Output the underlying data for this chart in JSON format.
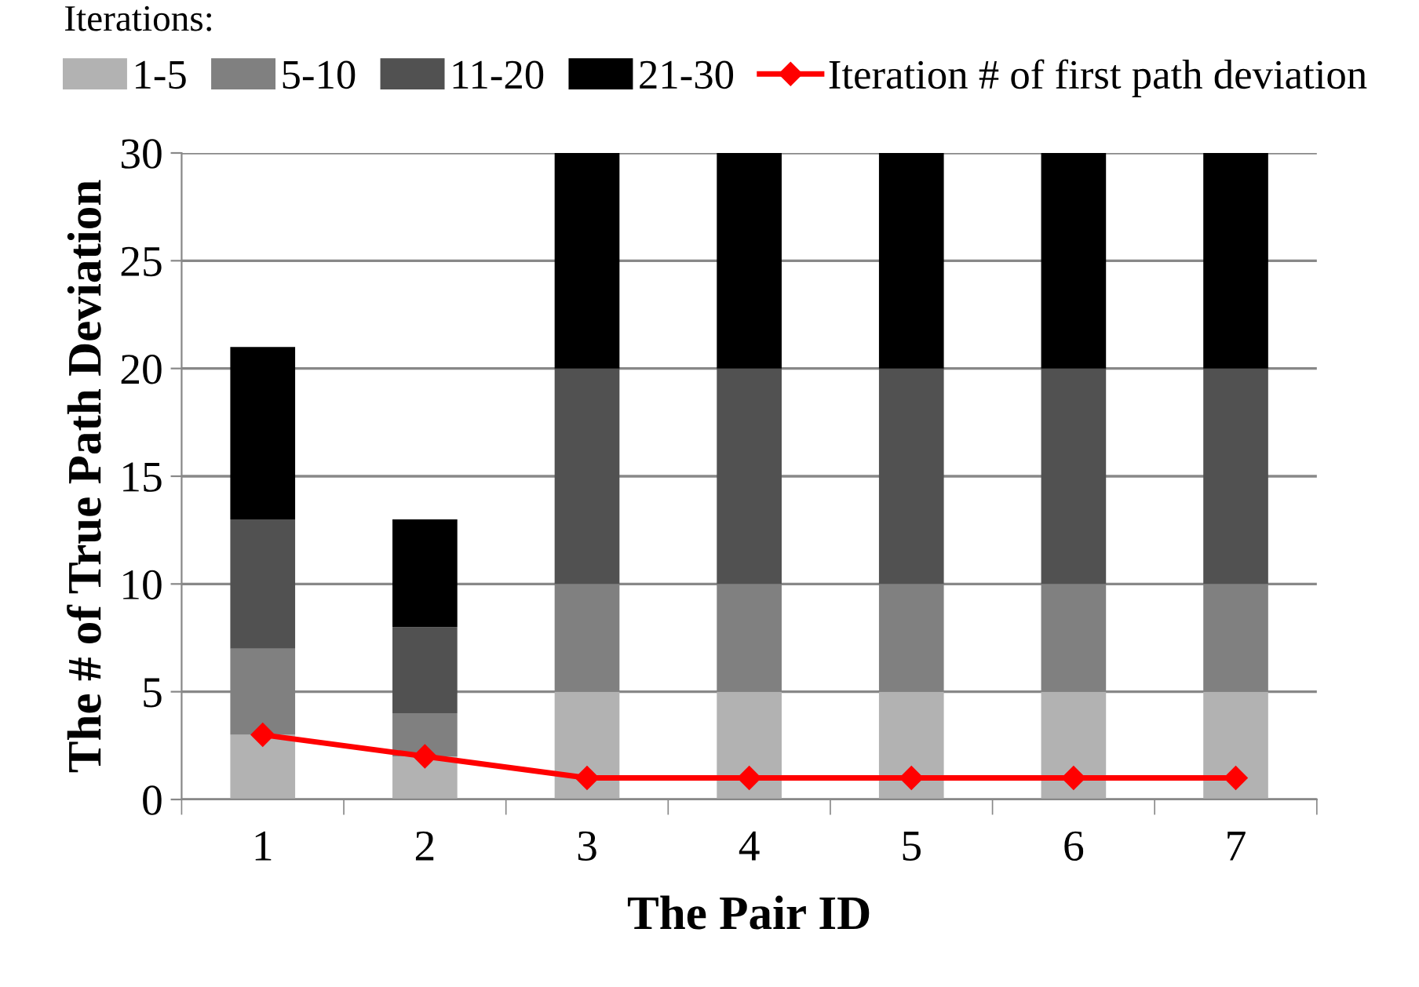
{
  "chart_data": {
    "type": "bar",
    "stacked": true,
    "xlabel": "The Pair ID",
    "ylabel": "The # of True Path Deviation",
    "legend_title": "Iterations:",
    "categories": [
      "1",
      "2",
      "3",
      "4",
      "5",
      "6",
      "7"
    ],
    "series": [
      {
        "name": "1-5",
        "color": "#b2b2b2",
        "values": [
          3,
          2,
          5,
          5,
          5,
          5,
          5
        ]
      },
      {
        "name": "5-10",
        "color": "#808080",
        "values": [
          4,
          2,
          5,
          5,
          5,
          5,
          5
        ]
      },
      {
        "name": "11-20",
        "color": "#515151",
        "values": [
          6,
          4,
          10,
          10,
          10,
          10,
          10
        ]
      },
      {
        "name": "21-30",
        "color": "#000000",
        "values": [
          8,
          5,
          10,
          10,
          10,
          10,
          10
        ]
      },
      {
        "name": "Iteration # of first path deviation",
        "type": "line",
        "color": "#ff0000",
        "marker": "diamond",
        "values": [
          3,
          2,
          1,
          1,
          1,
          1,
          1
        ]
      }
    ],
    "ylim": [
      0,
      30
    ],
    "yticks": [
      0,
      5,
      10,
      15,
      20,
      25,
      30
    ],
    "grid": "y",
    "legend": "top"
  }
}
